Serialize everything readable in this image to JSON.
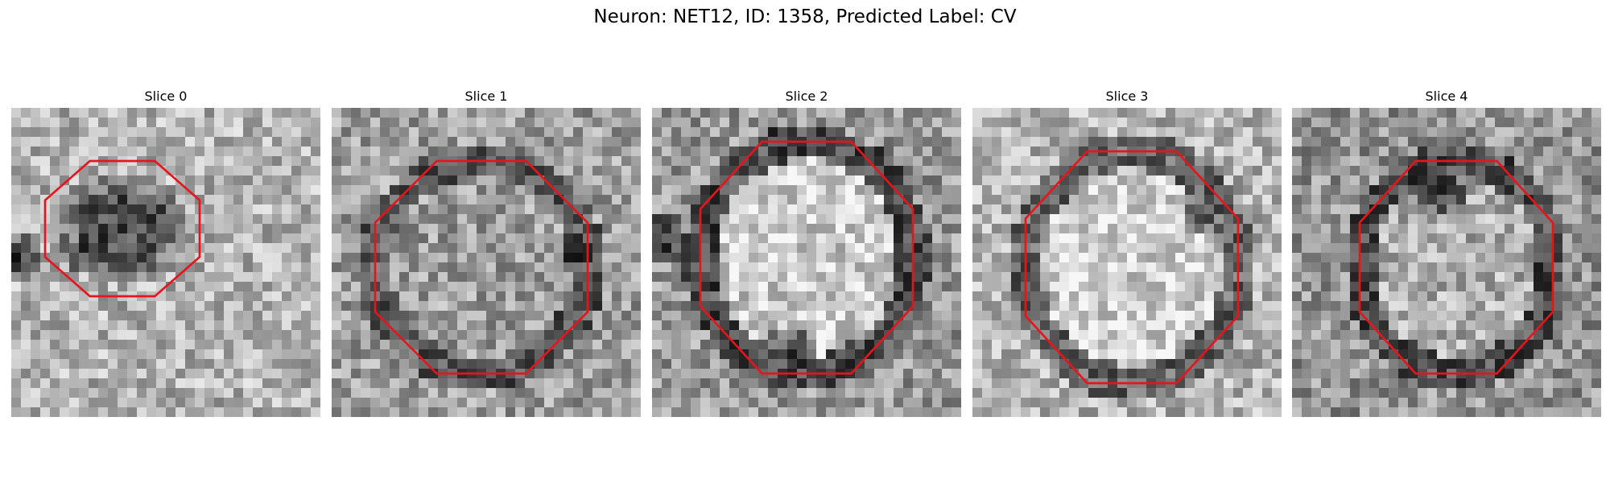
{
  "title": "Neuron: NET12, ID: 1358, Predicted Label: CV",
  "contour_color": "#e8141c",
  "slices": [
    {
      "label": "Slice 0"
    },
    {
      "label": "Slice 1"
    },
    {
      "label": "Slice 2"
    },
    {
      "label": "Slice 3"
    },
    {
      "label": "Slice 4"
    }
  ]
}
